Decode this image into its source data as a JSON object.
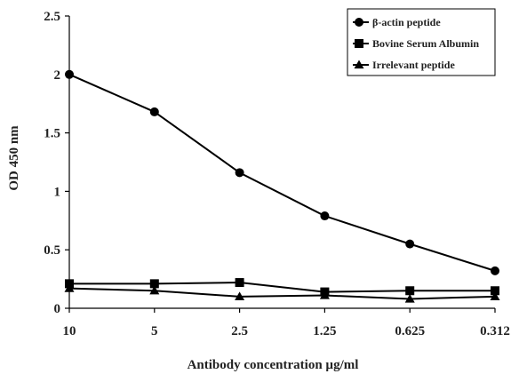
{
  "chart_data": {
    "type": "line",
    "title": "",
    "xlabel": "Antibody concentration µg/ml",
    "ylabel": "OD 450 nm",
    "categories": [
      "10",
      "5",
      "2.5",
      "1.25",
      "0.625",
      "0.312"
    ],
    "ylim": [
      0,
      2.5
    ],
    "yticks": [
      "0",
      "0.5",
      "1",
      "1.5",
      "2",
      "2.5"
    ],
    "grid": false,
    "legend_position": "top-right",
    "series": [
      {
        "name": "β-actin peptide",
        "marker": "circle",
        "color": "#000000",
        "values": [
          2.0,
          1.68,
          1.16,
          0.79,
          0.55,
          0.32
        ]
      },
      {
        "name": "Bovine Serum Albumin",
        "marker": "square",
        "color": "#000000",
        "values": [
          0.21,
          0.21,
          0.22,
          0.14,
          0.15,
          0.15
        ]
      },
      {
        "name": "Irrelevant peptide",
        "marker": "triangle",
        "color": "#000000",
        "values": [
          0.17,
          0.15,
          0.1,
          0.11,
          0.08,
          0.1
        ]
      }
    ]
  }
}
